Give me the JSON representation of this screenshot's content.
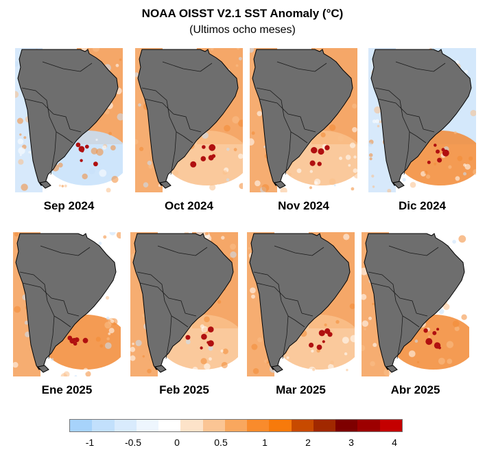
{
  "title": "NOAA OISST V2.1 SST Anomaly (°C)",
  "subtitle": "(Ultimos ocho meses)",
  "panels": [
    {
      "label": "Sep 2024",
      "atlantic": "warm",
      "pacific": "cool",
      "south": "cool"
    },
    {
      "label": "Oct 2024",
      "atlantic": "warm",
      "pacific": "warm",
      "south": "mixed"
    },
    {
      "label": "Nov 2024",
      "atlantic": "warm",
      "pacific": "warm",
      "south": "mixed"
    },
    {
      "label": "Dic 2024",
      "atlantic": "cool",
      "pacific": "cool",
      "south": "warm"
    },
    {
      "label": "Ene 2025",
      "atlantic": "neutral",
      "pacific": "warm",
      "south": "warm"
    },
    {
      "label": "Feb 2025",
      "atlantic": "warm",
      "pacific": "warm",
      "south": "mixed"
    },
    {
      "label": "Mar 2025",
      "atlantic": "warm",
      "pacific": "warm",
      "south": "mixed"
    },
    {
      "label": "Abr 2025",
      "atlantic": "neutral",
      "pacific": "warm",
      "south": "warm"
    }
  ],
  "colorbar": {
    "colors": [
      "#a7d3fb",
      "#c2e0fc",
      "#d9ebfd",
      "#eef6fe",
      "#ffffff",
      "#fde3c9",
      "#fbc594",
      "#f9a75e",
      "#f98b2c",
      "#f77a0b",
      "#c84a00",
      "#a12800",
      "#7e0000",
      "#9d0000",
      "#c40000"
    ],
    "ticks": [
      "-1",
      "-0.5",
      "0",
      "0.5",
      "1",
      "2",
      "3",
      "4"
    ]
  },
  "colors": {
    "land": "#6e6e6e",
    "warm": "#f28a35",
    "warm_light": "#f9c08b",
    "hot": "#b01010",
    "cool": "#c6e0fa",
    "neutral": "#ffffff"
  }
}
